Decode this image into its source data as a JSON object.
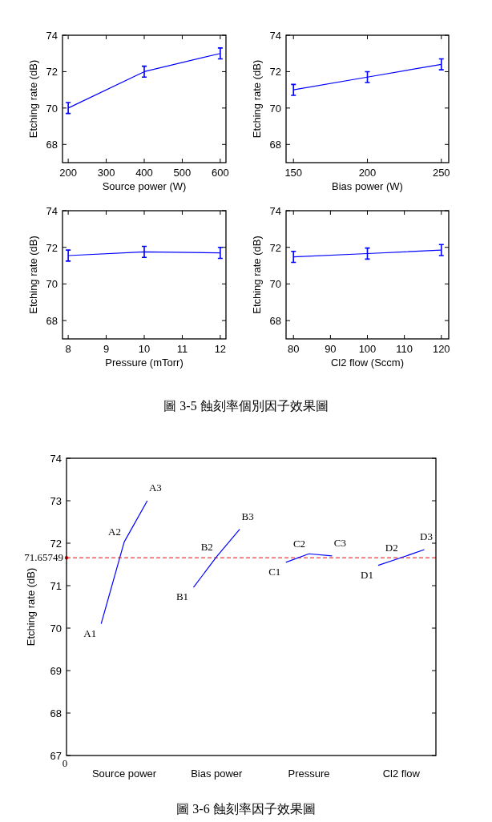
{
  "chart_data": [
    {
      "type": "line",
      "xlabel": "Source power (W)",
      "ylabel": "Etching rate (dB)",
      "xlim": [
        185,
        615
      ],
      "xticks": [
        200,
        300,
        400,
        500,
        600
      ],
      "ylim": [
        67,
        74
      ],
      "yticks": [
        68,
        70,
        72,
        74
      ],
      "series": [
        {
          "color": "#0000ff",
          "x": [
            200,
            400,
            600
          ],
          "values": [
            70.0,
            72.0,
            73.0
          ],
          "errors": [
            0.3,
            0.3,
            0.3
          ]
        }
      ]
    },
    {
      "type": "line",
      "xlabel": "Bias power (W)",
      "ylabel": "Etching rate (dB)",
      "xlim": [
        145,
        255
      ],
      "xticks": [
        150,
        200,
        250
      ],
      "ylim": [
        67,
        74
      ],
      "yticks": [
        68,
        70,
        72,
        74
      ],
      "series": [
        {
          "color": "#0000ff",
          "x": [
            150,
            200,
            250
          ],
          "values": [
            71.0,
            71.7,
            72.4
          ],
          "errors": [
            0.3,
            0.3,
            0.3
          ]
        }
      ]
    },
    {
      "type": "line",
      "xlabel": "Pressure (mTorr)",
      "ylabel": "Etching rate (dB)",
      "xlim": [
        7.85,
        12.15
      ],
      "xticks": [
        8,
        9,
        10,
        11,
        12
      ],
      "ylim": [
        67,
        74
      ],
      "yticks": [
        68,
        70,
        72,
        74
      ],
      "series": [
        {
          "color": "#0000ff",
          "x": [
            8,
            10,
            12
          ],
          "values": [
            71.55,
            71.75,
            71.7
          ],
          "errors": [
            0.3,
            0.3,
            0.3
          ]
        }
      ]
    },
    {
      "type": "line",
      "xlabel": "Cl2 flow (Sccm)",
      "ylabel": "Etching rate (dB)",
      "xlim": [
        78,
        122
      ],
      "xticks": [
        80,
        90,
        100,
        110,
        120
      ],
      "ylim": [
        67,
        74
      ],
      "yticks": [
        68,
        70,
        72,
        74
      ],
      "series": [
        {
          "color": "#0000ff",
          "x": [
            80,
            100,
            120
          ],
          "values": [
            71.48,
            71.66,
            71.85
          ],
          "errors": [
            0.3,
            0.3,
            0.3
          ]
        }
      ],
      "annotations": [
        "圖 3-5 蝕刻率個別因子效果圖"
      ]
    },
    {
      "type": "line",
      "ylabel": "Etching rate (dB)",
      "categories": [
        null,
        null,
        null,
        null,
        null,
        null,
        null,
        null,
        null,
        null,
        null,
        null,
        null,
        null,
        null,
        null
      ],
      "ylim": [
        67,
        74
      ],
      "yticks": [
        67,
        68,
        69,
        70,
        71,
        72,
        73,
        74
      ],
      "series": [
        {
          "color": "#0000ff",
          "values": [
            null,
            70.1,
            72.03,
            73.0,
            null,
            null,
            null,
            null,
            null,
            null,
            null,
            null,
            null,
            null,
            null,
            null
          ]
        },
        {
          "color": "#0000ff",
          "values": [
            null,
            null,
            null,
            null,
            null,
            70.96,
            71.68,
            72.33,
            null,
            null,
            null,
            null,
            null,
            null,
            null,
            null
          ]
        },
        {
          "color": "#0000ff",
          "values": [
            null,
            null,
            null,
            null,
            null,
            null,
            null,
            null,
            null,
            71.55,
            71.75,
            71.7,
            null,
            null,
            null,
            null
          ]
        },
        {
          "color": "#0000ff",
          "values": [
            null,
            null,
            null,
            null,
            null,
            null,
            null,
            null,
            null,
            null,
            null,
            null,
            null,
            71.48,
            71.66,
            71.85
          ]
        }
      ],
      "ref_lines": [
        {
          "axis": "y",
          "value": 71.65749,
          "label": "71.65749",
          "color": "#ff0000",
          "line_style": "dashed"
        }
      ],
      "annotations": [
        "A1",
        "A2",
        "A3",
        "B1",
        "B2",
        "B3",
        "C1",
        "C2",
        "C3",
        "D1",
        "D2",
        "D3",
        "0",
        "Source power",
        "Bias power",
        "Pressure",
        "Cl2 flow",
        "圖 3-6 蝕刻率因子效果圖"
      ]
    }
  ]
}
